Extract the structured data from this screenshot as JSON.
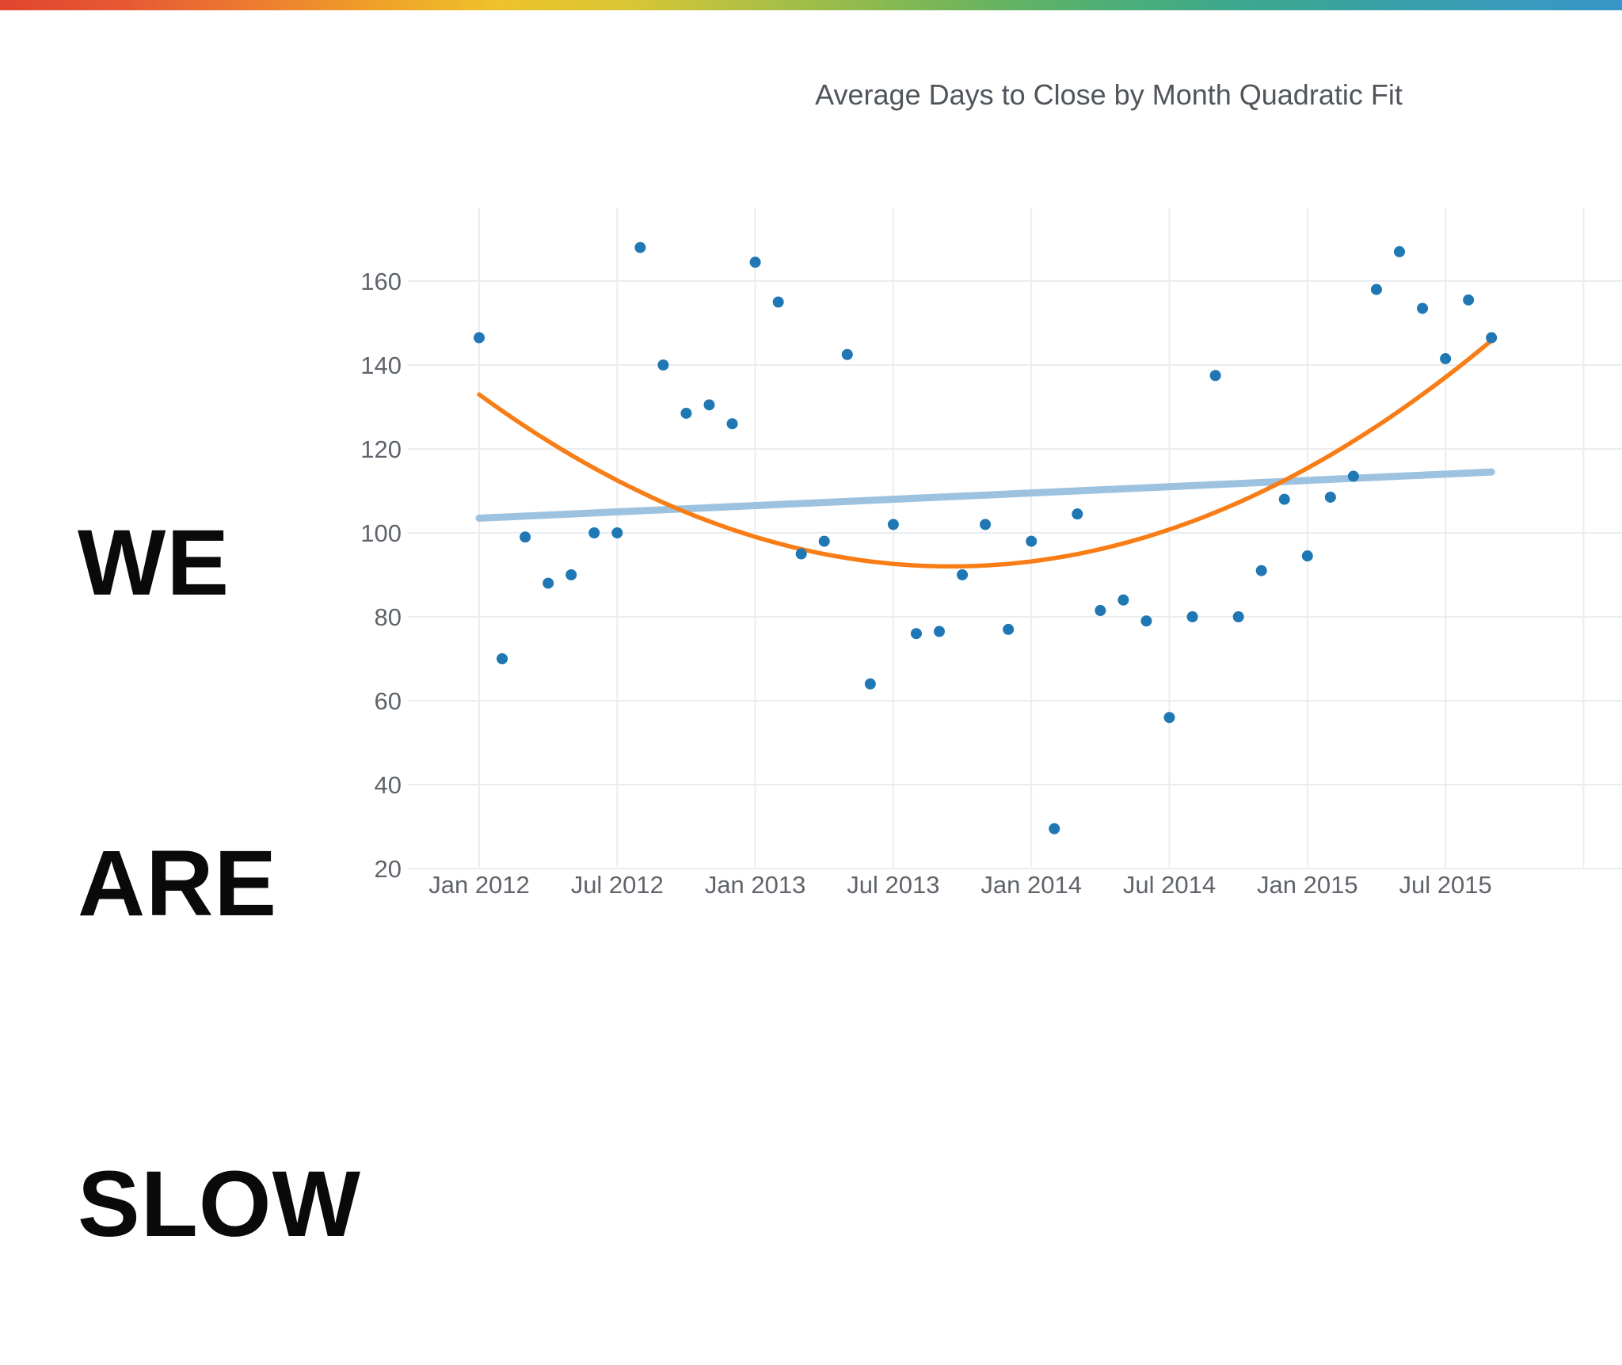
{
  "top_bar": {
    "gradient_stops": [
      "#e0462e",
      "#e65933",
      "#ec7a31",
      "#efa028",
      "#eec32b",
      "#d9c634",
      "#b1c043",
      "#8cba4f",
      "#67b361",
      "#4bae79",
      "#3da78f",
      "#38a0a4",
      "#3a9bb9",
      "#3996c8"
    ]
  },
  "headline": {
    "lines": [
      "WE",
      "ARE",
      "SLOW"
    ]
  },
  "chart_data": {
    "type": "scatter",
    "title": "Average Days to Close by Month Quadratic Fit",
    "xlabel": "",
    "ylabel": "",
    "x_tick_labels": [
      "Jan 2012",
      "Jul 2012",
      "Jan 2013",
      "Jul 2013",
      "Jan 2014",
      "Jul 2014",
      "Jan 2015",
      "Jul 2015"
    ],
    "x_gridline_month_indices": [
      0,
      6,
      12,
      18,
      24,
      30,
      36,
      42,
      48
    ],
    "y_ticks": [
      20,
      40,
      60,
      80,
      100,
      120,
      140,
      160
    ],
    "ylim": [
      20,
      172
    ],
    "grid": true,
    "legend": "none",
    "point_color": "#1f77b4",
    "grid_color": "#ebecf0",
    "points": [
      {
        "month": "Jan 2012",
        "days": 146.5
      },
      {
        "month": "Feb 2012",
        "days": 70
      },
      {
        "month": "Mar 2012",
        "days": 99
      },
      {
        "month": "Apr 2012",
        "days": 88
      },
      {
        "month": "May 2012",
        "days": 90
      },
      {
        "month": "Jun 2012",
        "days": 100
      },
      {
        "month": "Jul 2012",
        "days": 100
      },
      {
        "month": "Aug 2012",
        "days": 168
      },
      {
        "month": "Sep 2012",
        "days": 140
      },
      {
        "month": "Oct 2012",
        "days": 128.5
      },
      {
        "month": "Nov 2012",
        "days": 130.5
      },
      {
        "month": "Dec 2012",
        "days": 126
      },
      {
        "month": "Jan 2013",
        "days": 164.5
      },
      {
        "month": "Feb 2013",
        "days": 155
      },
      {
        "month": "Mar 2013",
        "days": 95
      },
      {
        "month": "Apr 2013",
        "days": 98
      },
      {
        "month": "May 2013",
        "days": 142.5
      },
      {
        "month": "Jun 2013",
        "days": 64
      },
      {
        "month": "Jul 2013",
        "days": 102
      },
      {
        "month": "Aug 2013",
        "days": 76
      },
      {
        "month": "Sep 2013",
        "days": 76.5
      },
      {
        "month": "Oct 2013",
        "days": 90
      },
      {
        "month": "Nov 2013",
        "days": 102
      },
      {
        "month": "Dec 2013",
        "days": 77
      },
      {
        "month": "Jan 2014",
        "days": 98
      },
      {
        "month": "Feb 2014",
        "days": 29.5
      },
      {
        "month": "Mar 2014",
        "days": 104.5
      },
      {
        "month": "Apr 2014",
        "days": 81.5
      },
      {
        "month": "May 2014",
        "days": 84
      },
      {
        "month": "Jun 2014",
        "days": 79
      },
      {
        "month": "Jul 2014",
        "days": 56
      },
      {
        "month": "Aug 2014",
        "days": 80
      },
      {
        "month": "Sep 2014",
        "days": 137.5
      },
      {
        "month": "Oct 2014",
        "days": 80
      },
      {
        "month": "Nov 2014",
        "days": 91
      },
      {
        "month": "Dec 2014",
        "days": 108
      },
      {
        "month": "Jan 2015",
        "days": 94.5
      },
      {
        "month": "Feb 2015",
        "days": 108.5
      },
      {
        "month": "Mar 2015",
        "days": 113.5
      },
      {
        "month": "Apr 2015",
        "days": 158
      },
      {
        "month": "May 2015",
        "days": 167
      },
      {
        "month": "Jun 2015",
        "days": 153.5
      },
      {
        "month": "Jul 2015",
        "days": 141.5
      },
      {
        "month": "Aug 2015",
        "days": 155.5
      },
      {
        "month": "Sep 2015",
        "days": 146.5
      }
    ],
    "fits": {
      "quadratic": {
        "name": "quadratic-fit",
        "color": "#f97d16",
        "vertex_month_index": 20.5,
        "min_value": 92,
        "a": 0.0975
      },
      "linear": {
        "name": "linear-trend",
        "color": "#9cc2e0",
        "start_value": 103.5,
        "end_value": 114.5
      }
    }
  }
}
